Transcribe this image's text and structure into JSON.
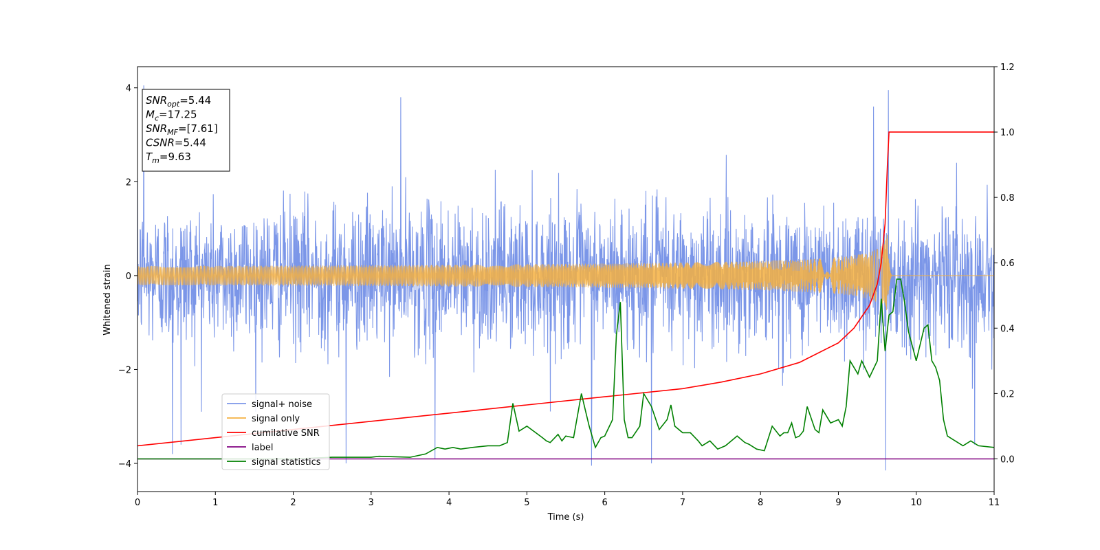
{
  "chart_data": {
    "type": "line",
    "xlabel": "Time (s)",
    "ylabel_left": "Whitened strain",
    "ylabel_right": "",
    "xlim": [
      0,
      11
    ],
    "ylim_left": [
      -4.6,
      4.45
    ],
    "ylim_right": [
      -0.1,
      1.2
    ],
    "x_ticks": [
      0,
      1,
      2,
      3,
      4,
      5,
      6,
      7,
      8,
      9,
      10,
      11
    ],
    "y_ticks_left": [
      -4,
      -2,
      0,
      2,
      4
    ],
    "y_ticks_right": [
      0.0,
      0.2,
      0.4,
      0.6,
      0.8,
      1.0,
      1.2
    ],
    "x_tick_labels": [
      "0",
      "1",
      "2",
      "3",
      "4",
      "5",
      "6",
      "7",
      "8",
      "9",
      "10",
      "11"
    ],
    "y_tick_labels_left": [
      "−4",
      "−2",
      "0",
      "2",
      "4"
    ],
    "y_tick_labels_right": [
      "0.0",
      "0.2",
      "0.4",
      "0.6",
      "0.8",
      "1.0",
      "1.2"
    ],
    "grid": false,
    "legend_position": "lower-left",
    "annotation": {
      "lines": [
        {
          "sym": "SNR",
          "sub": "opt",
          "val": "=5.44"
        },
        {
          "sym": "M",
          "sub": "c",
          "val": "=17.25"
        },
        {
          "sym": "SNR",
          "sub": "MF",
          "val": "=[7.61]"
        },
        {
          "sym": "CSNR",
          "sub": "",
          "val": "=5.44"
        },
        {
          "sym": "T",
          "sub": "m",
          "val": "=9.63"
        }
      ]
    },
    "series": [
      {
        "name": "signal+ noise",
        "axis": "left",
        "color": "#7b96e8",
        "description_type": "noisy",
        "x_range": [
          0,
          11
        ],
        "noise_envelope": [
          -2.3,
          2.3
        ],
        "spikes": [
          {
            "x": 0.08,
            "y": 4.05
          },
          {
            "x": 0.45,
            "y": -3.8
          },
          {
            "x": 0.56,
            "y": -3.6
          },
          {
            "x": 3.38,
            "y": 3.8
          },
          {
            "x": 2.68,
            "y": -4.0
          },
          {
            "x": 3.82,
            "y": -3.9
          },
          {
            "x": 5.83,
            "y": -4.05
          },
          {
            "x": 6.6,
            "y": -4.0
          },
          {
            "x": 9.61,
            "y": -4.15
          },
          {
            "x": 9.64,
            "y": 3.95
          },
          {
            "x": 9.45,
            "y": 3.6
          },
          {
            "x": 10.75,
            "y": -3.6
          }
        ]
      },
      {
        "name": "signal only",
        "axis": "left",
        "color": "#f5b041",
        "description_type": "chirp",
        "t_merge": 9.63,
        "peak_amplitude": 0.95
      },
      {
        "name": "cumilative SNR",
        "axis": "right",
        "color": "#ff0000",
        "x": [
          0,
          1,
          2,
          3,
          4,
          5,
          6,
          7,
          7.5,
          8,
          8.5,
          9,
          9.2,
          9.4,
          9.5,
          9.55,
          9.6,
          9.63,
          9.65,
          11
        ],
        "values": [
          0.04,
          0.065,
          0.09,
          0.115,
          0.14,
          0.165,
          0.19,
          0.215,
          0.235,
          0.26,
          0.295,
          0.355,
          0.4,
          0.47,
          0.535,
          0.6,
          0.72,
          0.9,
          1.0,
          1.0
        ]
      },
      {
        "name": "label",
        "axis": "right",
        "color": "#800080",
        "x": [
          0,
          11
        ],
        "values": [
          0,
          0
        ]
      },
      {
        "name": "signal statistics",
        "axis": "right",
        "color": "#008000",
        "x": [
          0,
          1,
          2,
          2.5,
          3,
          3.1,
          3.5,
          3.7,
          3.85,
          3.95,
          4.05,
          4.15,
          4.3,
          4.5,
          4.65,
          4.75,
          4.82,
          4.9,
          5.0,
          5.2,
          5.25,
          5.3,
          5.4,
          5.45,
          5.5,
          5.6,
          5.7,
          5.75,
          5.8,
          5.88,
          5.95,
          6.0,
          6.1,
          6.15,
          6.2,
          6.25,
          6.3,
          6.35,
          6.45,
          6.5,
          6.6,
          6.7,
          6.8,
          6.85,
          6.9,
          7.0,
          7.1,
          7.2,
          7.25,
          7.35,
          7.45,
          7.55,
          7.7,
          7.8,
          7.85,
          7.95,
          8.05,
          8.15,
          8.25,
          8.3,
          8.35,
          8.4,
          8.45,
          8.5,
          8.55,
          8.6,
          8.7,
          8.75,
          8.8,
          8.9,
          9.0,
          9.05,
          9.1,
          9.15,
          9.25,
          9.3,
          9.4,
          9.5,
          9.55,
          9.6,
          9.65,
          9.7,
          9.75,
          9.8,
          9.85,
          9.9,
          10.0,
          10.05,
          10.1,
          10.15,
          10.2,
          10.25,
          10.3,
          10.35,
          10.4,
          10.5,
          10.6,
          10.7,
          10.8,
          11
        ],
        "values": [
          0.0,
          0.0,
          0.0,
          0.005,
          0.005,
          0.008,
          0.005,
          0.015,
          0.035,
          0.03,
          0.035,
          0.03,
          0.035,
          0.04,
          0.04,
          0.05,
          0.17,
          0.085,
          0.1,
          0.065,
          0.055,
          0.05,
          0.075,
          0.055,
          0.07,
          0.065,
          0.2,
          0.15,
          0.1,
          0.035,
          0.065,
          0.07,
          0.12,
          0.38,
          0.48,
          0.12,
          0.065,
          0.065,
          0.1,
          0.2,
          0.16,
          0.09,
          0.12,
          0.165,
          0.1,
          0.08,
          0.08,
          0.055,
          0.04,
          0.055,
          0.03,
          0.04,
          0.07,
          0.05,
          0.045,
          0.03,
          0.025,
          0.1,
          0.07,
          0.08,
          0.08,
          0.11,
          0.065,
          0.07,
          0.085,
          0.16,
          0.09,
          0.08,
          0.15,
          0.11,
          0.12,
          0.1,
          0.16,
          0.3,
          0.26,
          0.3,
          0.25,
          0.3,
          0.49,
          0.33,
          0.44,
          0.45,
          0.55,
          0.55,
          0.48,
          0.39,
          0.3,
          0.35,
          0.4,
          0.41,
          0.3,
          0.28,
          0.24,
          0.12,
          0.07,
          0.055,
          0.04,
          0.055,
          0.04,
          0.035
        ]
      }
    ]
  }
}
